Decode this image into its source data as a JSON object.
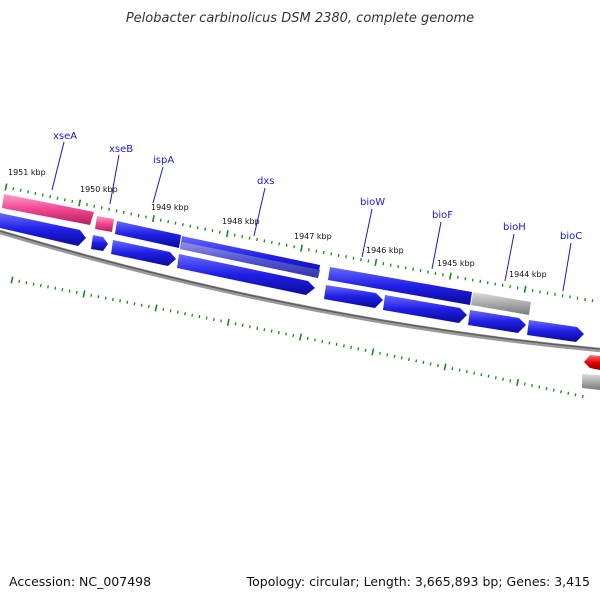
{
  "title": "Pelobacter carbinolicus DSM 2380, complete genome",
  "footer": {
    "accession": "Accession: NC_007498",
    "stats": "Topology: circular; Length: 3,665,893 bp; Genes: 3,415"
  },
  "colors": {
    "cds": "#1f1fe6",
    "cds_dark": "#0a0a9a",
    "rna": "#f0458f",
    "pseudo": "#aaaaaa",
    "other": "#e60000",
    "backbone": "#777777",
    "tick": "#1a8a1a",
    "label_line": "#1a1acc"
  },
  "kbp_markers": [
    {
      "label": "1951 kbp"
    },
    {
      "label": "1950 kbp"
    },
    {
      "label": "1949 kbp"
    },
    {
      "label": "1948 kbp"
    },
    {
      "label": "1947 kbp"
    },
    {
      "label": "1946 kbp"
    },
    {
      "label": "1945 kbp"
    },
    {
      "label": "1944 kbp"
    }
  ],
  "gene_labels": [
    {
      "name": "xseA"
    },
    {
      "name": "xseB"
    },
    {
      "name": "ispA"
    },
    {
      "name": "dxs"
    },
    {
      "name": "bioW"
    },
    {
      "name": "bioF"
    },
    {
      "name": "bioH"
    },
    {
      "name": "bioC"
    }
  ]
}
